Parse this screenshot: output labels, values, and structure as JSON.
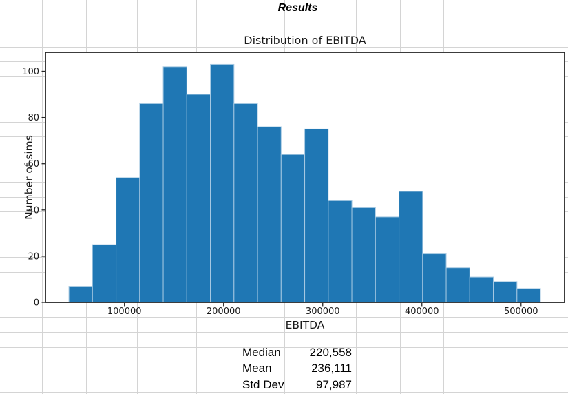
{
  "sheet": {
    "title": "Results"
  },
  "chart_data": {
    "type": "bar",
    "title": "Distribution of EBITDA",
    "xlabel": "EBITDA",
    "ylabel": "Number of sims",
    "bin_start": 44000,
    "bin_width": 23782,
    "values": [
      7,
      25,
      54,
      86,
      102,
      90,
      103,
      86,
      76,
      64,
      75,
      44,
      41,
      37,
      48,
      21,
      15,
      11,
      9,
      6
    ],
    "x_ticks": [
      100000,
      200000,
      300000,
      400000,
      500000
    ],
    "y_ticks": [
      0,
      20,
      40,
      60,
      80,
      100
    ],
    "xlim": [
      20350,
      543900
    ],
    "ylim": [
      0,
      108.2
    ],
    "grid": "off",
    "legend": "none",
    "bar_color": "#1f77b4",
    "bar_edge_color": "#a6c9e2",
    "axis_color": "#262626",
    "text_color": "#1a1a1a"
  },
  "stats": {
    "rows": [
      {
        "label": "Median",
        "value": "220,558"
      },
      {
        "label": "Mean",
        "value": "236,111"
      },
      {
        "label": "Std Dev",
        "value": "97,987"
      }
    ]
  }
}
